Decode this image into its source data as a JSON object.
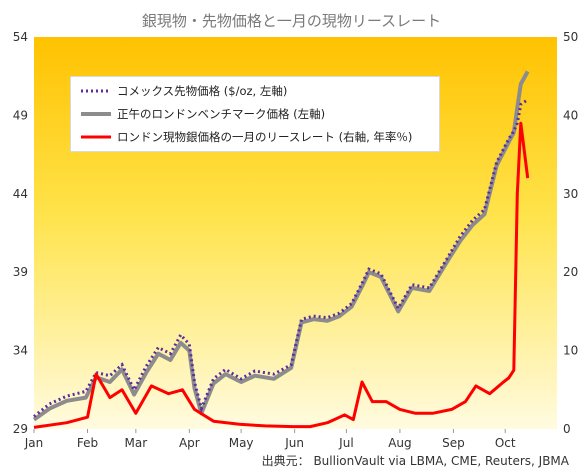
{
  "title": "銀現物・先物価格と一月の現物リースレート",
  "source": "出典元： BullionVault via LBMA, CME, Reuters, JBMA",
  "colors": {
    "futures": "#5b2d9e",
    "london": "#8c8c8c",
    "lease": "#ff0000"
  },
  "chart_data": {
    "type": "line",
    "title": "銀現物・先物価格と一月の現物リースレート",
    "x_ticks": [
      "Jan",
      "Feb",
      "Mar",
      "Apr",
      "May",
      "Jun",
      "Jul",
      "Aug",
      "Sep",
      "Oct"
    ],
    "x_range": [
      "2025-01-01",
      "2025-10-31"
    ],
    "y_left": {
      "range": [
        29,
        54
      ],
      "ticks": [
        29,
        34,
        39,
        44,
        49,
        54
      ]
    },
    "y_right": {
      "range": [
        0,
        50
      ],
      "ticks": [
        0,
        10,
        20,
        30,
        40,
        50
      ]
    },
    "grid": false,
    "legend_placement": "top-left",
    "series": [
      {
        "name": "コメックス先物価格 ($/oz, 左軸)",
        "axis": "left",
        "style": "dotted",
        "x": [
          "2025-01-01",
          "2025-01-10",
          "2025-01-20",
          "2025-01-31",
          "2025-02-06",
          "2025-02-14",
          "2025-02-21",
          "2025-02-28",
          "2025-03-07",
          "2025-03-14",
          "2025-03-21",
          "2025-03-27",
          "2025-04-01",
          "2025-04-04",
          "2025-04-08",
          "2025-04-15",
          "2025-04-22",
          "2025-05-01",
          "2025-05-09",
          "2025-05-20",
          "2025-05-30",
          "2025-06-05",
          "2025-06-12",
          "2025-06-20",
          "2025-06-27",
          "2025-07-04",
          "2025-07-11",
          "2025-07-14",
          "2025-07-21",
          "2025-07-31",
          "2025-08-08",
          "2025-08-18",
          "2025-08-29",
          "2025-09-05",
          "2025-09-12",
          "2025-09-19",
          "2025-09-26",
          "2025-10-03",
          "2025-10-06",
          "2025-10-08",
          "2025-10-10",
          "2025-10-14"
        ],
        "values": [
          29.8,
          30.6,
          31.1,
          31.4,
          32.6,
          32.4,
          33.1,
          31.5,
          33.0,
          34.2,
          33.8,
          35.0,
          34.4,
          32.0,
          30.3,
          32.2,
          32.8,
          32.2,
          32.7,
          32.5,
          33.1,
          36.0,
          36.2,
          36.1,
          36.4,
          37.0,
          38.5,
          39.2,
          38.9,
          36.7,
          38.2,
          38.0,
          40.0,
          41.3,
          42.3,
          43.0,
          46.0,
          47.5,
          48.0,
          48.5,
          49.7,
          50.0
        ]
      },
      {
        "name": "正午のロンドンベンチマーク価格 (左軸)",
        "axis": "left",
        "style": "solid-thick",
        "x": [
          "2025-01-01",
          "2025-01-10",
          "2025-01-20",
          "2025-01-31",
          "2025-02-06",
          "2025-02-14",
          "2025-02-21",
          "2025-02-28",
          "2025-03-07",
          "2025-03-14",
          "2025-03-21",
          "2025-03-27",
          "2025-04-01",
          "2025-04-04",
          "2025-04-08",
          "2025-04-15",
          "2025-04-22",
          "2025-05-01",
          "2025-05-09",
          "2025-05-20",
          "2025-05-30",
          "2025-06-05",
          "2025-06-12",
          "2025-06-20",
          "2025-06-27",
          "2025-07-04",
          "2025-07-11",
          "2025-07-14",
          "2025-07-21",
          "2025-07-31",
          "2025-08-08",
          "2025-08-18",
          "2025-08-29",
          "2025-09-05",
          "2025-09-12",
          "2025-09-19",
          "2025-09-26",
          "2025-10-03",
          "2025-10-06",
          "2025-10-08",
          "2025-10-10",
          "2025-10-14"
        ],
        "values": [
          29.6,
          30.3,
          30.8,
          31.0,
          32.3,
          32.0,
          32.8,
          31.2,
          32.6,
          33.8,
          33.4,
          34.5,
          34.0,
          31.6,
          30.0,
          31.9,
          32.5,
          32.0,
          32.4,
          32.2,
          32.9,
          35.8,
          36.0,
          35.9,
          36.2,
          36.8,
          38.3,
          39.0,
          38.7,
          36.5,
          38.0,
          37.8,
          39.8,
          41.0,
          42.0,
          42.7,
          45.8,
          47.3,
          47.9,
          49.5,
          51.0,
          51.8
        ]
      },
      {
        "name": "ロンドン現物銀価格の一月のリースレート (右軸, 年率％)",
        "axis": "right",
        "style": "solid-red",
        "x": [
          "2025-01-01",
          "2025-01-20",
          "2025-02-01",
          "2025-02-06",
          "2025-02-14",
          "2025-02-21",
          "2025-03-01",
          "2025-03-10",
          "2025-03-20",
          "2025-03-28",
          "2025-04-04",
          "2025-04-15",
          "2025-04-30",
          "2025-05-15",
          "2025-05-31",
          "2025-06-10",
          "2025-06-20",
          "2025-06-30",
          "2025-07-05",
          "2025-07-10",
          "2025-07-16",
          "2025-07-24",
          "2025-08-01",
          "2025-08-10",
          "2025-08-20",
          "2025-08-31",
          "2025-09-08",
          "2025-09-14",
          "2025-09-22",
          "2025-09-30",
          "2025-10-03",
          "2025-10-06",
          "2025-10-08",
          "2025-10-10",
          "2025-10-14"
        ],
        "values": [
          0.2,
          0.8,
          1.5,
          7.0,
          4.0,
          5.0,
          2.0,
          5.5,
          4.5,
          5.0,
          2.5,
          1.0,
          0.6,
          0.4,
          0.3,
          0.3,
          0.8,
          1.8,
          1.2,
          6.0,
          3.5,
          3.5,
          2.5,
          2.0,
          2.0,
          2.5,
          3.5,
          5.5,
          4.5,
          6.0,
          6.5,
          7.5,
          30.0,
          39.0,
          32.0
        ]
      }
    ]
  }
}
